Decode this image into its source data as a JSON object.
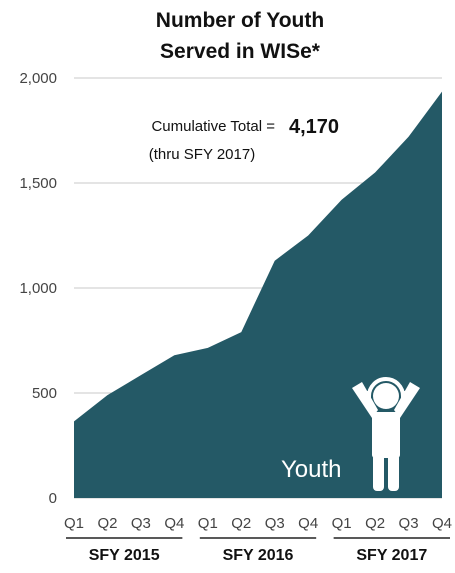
{
  "chart_data": {
    "type": "area",
    "title_lines": [
      "Number of Youth",
      "Served in WISe*"
    ],
    "categories": [
      "Q1",
      "Q2",
      "Q3",
      "Q4",
      "Q1",
      "Q2",
      "Q3",
      "Q4",
      "Q1",
      "Q2",
      "Q3",
      "Q4"
    ],
    "groups": [
      {
        "label": "SFY 2015",
        "start": 0,
        "end": 3
      },
      {
        "label": "SFY 2016",
        "start": 4,
        "end": 7
      },
      {
        "label": "SFY 2017",
        "start": 8,
        "end": 11
      }
    ],
    "series": [
      {
        "values": [
          365,
          490,
          585,
          680,
          715,
          790,
          1130,
          1250,
          1420,
          1550,
          1720,
          1935
        ]
      }
    ],
    "ylim": [
      0,
      2000
    ],
    "yticks": [
      0,
      500,
      1000,
      1500,
      2000
    ],
    "ytick_labels": [
      "0",
      "500",
      "1,000",
      "1,500",
      "2,000"
    ],
    "grid": true,
    "colors": {
      "area": "#245966",
      "grid": "#c8c8c8"
    },
    "annotation": {
      "line1_text": "Cumulative Total =",
      "line1_value": "4,170",
      "line2_text": "(thru SFY 2017)"
    },
    "icon": {
      "name": "youth-headphones-icon",
      "label": "Youth"
    }
  }
}
